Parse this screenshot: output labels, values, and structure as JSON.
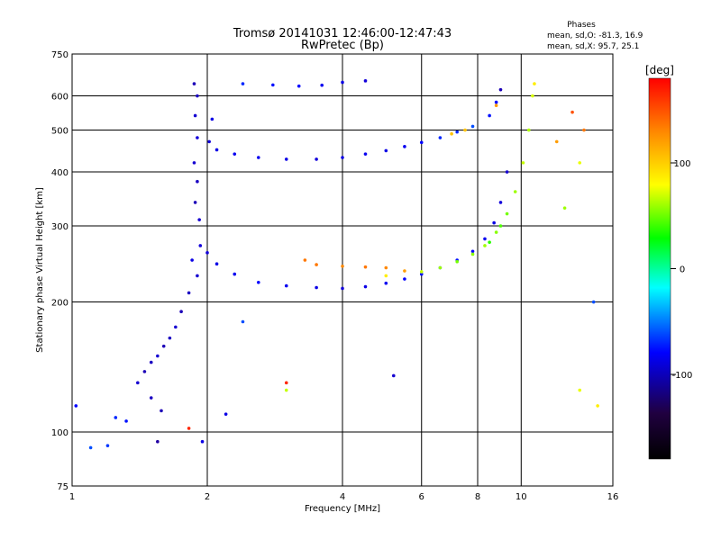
{
  "chart_data": {
    "type": "scatter",
    "title": "Tromsø 20141031 12:46:00-12:47:43",
    "subtitle": "RwPretec (Bp)",
    "xlabel": "Frequency [MHz]",
    "ylabel": "Stationary phase Virtual Height [km]",
    "x_scale": "log",
    "y_scale": "log",
    "xlim": [
      1,
      16
    ],
    "ylim": [
      75,
      750
    ],
    "x_ticks": [
      1,
      2,
      4,
      6,
      8,
      10,
      16
    ],
    "y_ticks": [
      75,
      100,
      200,
      300,
      400,
      500,
      600,
      750
    ],
    "grid": true,
    "stats": {
      "heading": "Phases",
      "line_o": "mean, sd,O: -81.3, 16.9",
      "line_x": "mean, sd,X: 95.7, 25.1"
    },
    "colorbar": {
      "label": "[deg]",
      "range": [
        -180,
        180
      ],
      "ticks": [
        100,
        0,
        -100
      ],
      "colors": [
        "#ff0000",
        "#ff8800",
        "#ffff00",
        "#00ff00",
        "#00ffff",
        "#0000ff",
        "#200040",
        "#000000"
      ]
    },
    "series": [
      {
        "points": [
          {
            "f": 1.87,
            "h": 640,
            "p": -110
          },
          {
            "f": 1.9,
            "h": 600,
            "p": -105
          },
          {
            "f": 1.88,
            "h": 540,
            "p": -100
          },
          {
            "f": 1.9,
            "h": 480,
            "p": -95
          },
          {
            "f": 1.87,
            "h": 420,
            "p": -100
          },
          {
            "f": 1.9,
            "h": 380,
            "p": -105
          },
          {
            "f": 1.88,
            "h": 340,
            "p": -110
          },
          {
            "f": 1.92,
            "h": 310,
            "p": -100
          },
          {
            "f": 1.93,
            "h": 270,
            "p": -95
          },
          {
            "f": 1.85,
            "h": 250,
            "p": -90
          },
          {
            "f": 1.9,
            "h": 230,
            "p": -100
          },
          {
            "f": 1.82,
            "h": 210,
            "p": -105
          },
          {
            "f": 1.75,
            "h": 190,
            "p": -110
          },
          {
            "f": 1.7,
            "h": 175,
            "p": -100
          },
          {
            "f": 1.65,
            "h": 165,
            "p": -105
          },
          {
            "f": 1.6,
            "h": 158,
            "p": -110
          },
          {
            "f": 1.55,
            "h": 150,
            "p": -100
          },
          {
            "f": 1.5,
            "h": 145,
            "p": -105
          },
          {
            "f": 1.45,
            "h": 138,
            "p": -110
          },
          {
            "f": 1.4,
            "h": 130,
            "p": -100
          },
          {
            "f": 1.5,
            "h": 120,
            "p": -105
          },
          {
            "f": 1.58,
            "h": 112,
            "p": -110
          },
          {
            "f": 1.55,
            "h": 95,
            "p": -120
          },
          {
            "f": 1.25,
            "h": 108,
            "p": -70
          },
          {
            "f": 1.32,
            "h": 106,
            "p": -75
          },
          {
            "f": 1.1,
            "h": 92,
            "p": -60
          },
          {
            "f": 1.2,
            "h": 93,
            "p": -65
          },
          {
            "f": 1.02,
            "h": 115,
            "p": -80
          },
          {
            "f": 2.05,
            "h": 530,
            "p": -90
          },
          {
            "f": 2.02,
            "h": 470,
            "p": -95
          },
          {
            "f": 2.1,
            "h": 450,
            "p": -90
          },
          {
            "f": 2.3,
            "h": 440,
            "p": -85
          },
          {
            "f": 2.6,
            "h": 432,
            "p": -85
          },
          {
            "f": 3.0,
            "h": 428,
            "p": -90
          },
          {
            "f": 3.5,
            "h": 428,
            "p": -95
          },
          {
            "f": 4.0,
            "h": 432,
            "p": -90
          },
          {
            "f": 4.5,
            "h": 440,
            "p": -85
          },
          {
            "f": 5.0,
            "h": 448,
            "p": -90
          },
          {
            "f": 5.5,
            "h": 458,
            "p": -85
          },
          {
            "f": 6.0,
            "h": 468,
            "p": -80
          },
          {
            "f": 6.6,
            "h": 480,
            "p": -70
          },
          {
            "f": 7.2,
            "h": 495,
            "p": -70
          },
          {
            "f": 7.8,
            "h": 510,
            "p": -60
          },
          {
            "f": 8.5,
            "h": 540,
            "p": -75
          },
          {
            "f": 8.8,
            "h": 580,
            "p": -80
          },
          {
            "f": 9.0,
            "h": 620,
            "p": -110
          },
          {
            "f": 7.0,
            "h": 490,
            "p": 130
          },
          {
            "f": 7.5,
            "h": 500,
            "p": 130
          },
          {
            "f": 8.8,
            "h": 570,
            "p": 140
          },
          {
            "f": 2.4,
            "h": 640,
            "p": -70
          },
          {
            "f": 2.8,
            "h": 636,
            "p": -75
          },
          {
            "f": 3.2,
            "h": 632,
            "p": -80
          },
          {
            "f": 3.6,
            "h": 635,
            "p": -85
          },
          {
            "f": 4.0,
            "h": 645,
            "p": -90
          },
          {
            "f": 4.5,
            "h": 650,
            "p": -95
          },
          {
            "f": 2.0,
            "h": 260,
            "p": -95
          },
          {
            "f": 2.1,
            "h": 245,
            "p": -90
          },
          {
            "f": 2.3,
            "h": 232,
            "p": -85
          },
          {
            "f": 2.6,
            "h": 222,
            "p": -80
          },
          {
            "f": 3.0,
            "h": 218,
            "p": -85
          },
          {
            "f": 3.5,
            "h": 216,
            "p": -90
          },
          {
            "f": 4.0,
            "h": 215,
            "p": -95
          },
          {
            "f": 4.5,
            "h": 217,
            "p": -90
          },
          {
            "f": 5.0,
            "h": 221,
            "p": -85
          },
          {
            "f": 5.5,
            "h": 226,
            "p": -80
          },
          {
            "f": 6.0,
            "h": 232,
            "p": -75
          },
          {
            "f": 6.6,
            "h": 240,
            "p": -70
          },
          {
            "f": 7.2,
            "h": 250,
            "p": -75
          },
          {
            "f": 7.8,
            "h": 262,
            "p": -80
          },
          {
            "f": 8.3,
            "h": 280,
            "p": -85
          },
          {
            "f": 8.7,
            "h": 305,
            "p": -90
          },
          {
            "f": 9.0,
            "h": 340,
            "p": -95
          },
          {
            "f": 9.3,
            "h": 400,
            "p": -100
          },
          {
            "f": 3.3,
            "h": 250,
            "p": 150
          },
          {
            "f": 3.5,
            "h": 244,
            "p": 150
          },
          {
            "f": 4.0,
            "h": 242,
            "p": 145
          },
          {
            "f": 4.5,
            "h": 241,
            "p": 150
          },
          {
            "f": 5.0,
            "h": 240,
            "p": 145
          },
          {
            "f": 5.5,
            "h": 236,
            "p": 140
          },
          {
            "f": 5.0,
            "h": 230,
            "p": 120
          },
          {
            "f": 6.0,
            "h": 235,
            "p": 100
          },
          {
            "f": 6.6,
            "h": 240,
            "p": 90
          },
          {
            "f": 7.2,
            "h": 248,
            "p": 80
          },
          {
            "f": 7.8,
            "h": 258,
            "p": 85
          },
          {
            "f": 8.3,
            "h": 270,
            "p": 90
          },
          {
            "f": 8.8,
            "h": 290,
            "p": 85
          },
          {
            "f": 9.3,
            "h": 320,
            "p": 80
          },
          {
            "f": 9.7,
            "h": 360,
            "p": 90
          },
          {
            "f": 10.1,
            "h": 420,
            "p": 100
          },
          {
            "f": 10.4,
            "h": 500,
            "p": 95
          },
          {
            "f": 10.6,
            "h": 600,
            "p": 105
          },
          {
            "f": 10.7,
            "h": 640,
            "p": 120
          },
          {
            "f": 9.0,
            "h": 300,
            "p": 70
          },
          {
            "f": 8.5,
            "h": 275,
            "p": 60
          },
          {
            "f": 13.0,
            "h": 550,
            "p": 160
          },
          {
            "f": 13.8,
            "h": 500,
            "p": 150
          },
          {
            "f": 12.0,
            "h": 470,
            "p": 140
          },
          {
            "f": 13.5,
            "h": 420,
            "p": 110
          },
          {
            "f": 12.5,
            "h": 330,
            "p": 90
          },
          {
            "f": 14.5,
            "h": 200,
            "p": -60
          },
          {
            "f": 14.8,
            "h": 115,
            "p": 120
          },
          {
            "f": 13.5,
            "h": 125,
            "p": 110
          },
          {
            "f": 3.0,
            "h": 130,
            "p": 170
          },
          {
            "f": 3.0,
            "h": 125,
            "p": 100
          },
          {
            "f": 5.2,
            "h": 135,
            "p": -100
          },
          {
            "f": 2.4,
            "h": 180,
            "p": -60
          },
          {
            "f": 2.2,
            "h": 110,
            "p": -90
          },
          {
            "f": 1.95,
            "h": 95,
            "p": -90
          },
          {
            "f": 1.82,
            "h": 102,
            "p": 170
          }
        ]
      }
    ]
  }
}
